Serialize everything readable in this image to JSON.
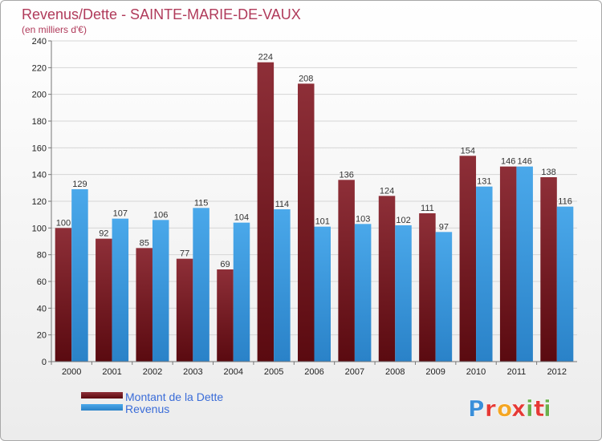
{
  "chart_data": {
    "type": "bar",
    "title": "Revenus/Dette - SAINTE-MARIE-DE-VAUX",
    "subtitle": "(en milliers d'€)",
    "categories": [
      "2000",
      "2001",
      "2002",
      "2003",
      "2004",
      "2005",
      "2006",
      "2007",
      "2008",
      "2009",
      "2010",
      "2011",
      "2012"
    ],
    "series": [
      {
        "name": "Montant de la Dette",
        "color": "#7a1f28",
        "values": [
          100,
          92,
          85,
          77,
          69,
          224,
          208,
          136,
          124,
          111,
          154,
          146,
          138
        ]
      },
      {
        "name": "Revenus",
        "color": "#3f9fe2",
        "values": [
          129,
          107,
          106,
          115,
          104,
          114,
          101,
          103,
          102,
          97,
          131,
          146,
          116
        ]
      }
    ],
    "ylim": [
      0,
      240
    ],
    "yticks": [
      0,
      20,
      40,
      60,
      80,
      100,
      120,
      140,
      160,
      180,
      200,
      220,
      240
    ],
    "grid": true,
    "legend_position": "bottom-left"
  },
  "logo": {
    "text": "Proxiti",
    "letters": [
      "P",
      "r",
      "o",
      "x",
      "i",
      "t",
      "i"
    ],
    "colors": [
      "#3a8fd9",
      "#e53935",
      "#f4a623",
      "#e53935",
      "#6ab04c",
      "#e53935",
      "#6ab04c"
    ]
  }
}
